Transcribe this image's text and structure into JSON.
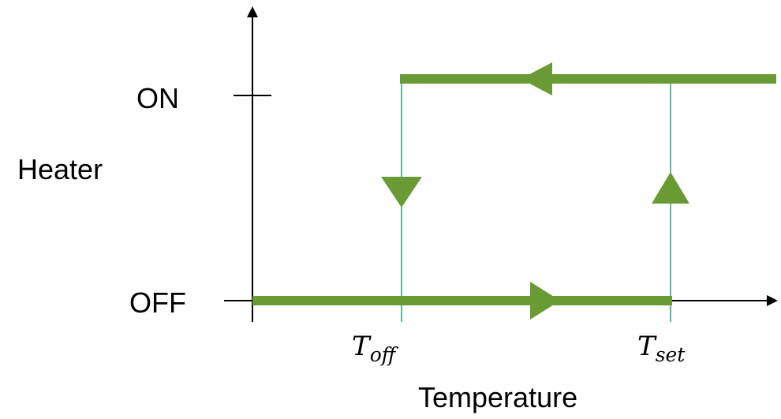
{
  "diagram": {
    "y_axis_label": "Heater",
    "x_axis_label": "Temperature",
    "states": {
      "on": "ON",
      "off": "OFF"
    },
    "thresholds": {
      "t_off": {
        "main": "T",
        "sub": "off"
      },
      "t_set": {
        "main": "T",
        "sub": "set"
      }
    },
    "colors": {
      "path": "#6a9a34",
      "guide": "#3aa58a",
      "axis": "#000000"
    }
  }
}
